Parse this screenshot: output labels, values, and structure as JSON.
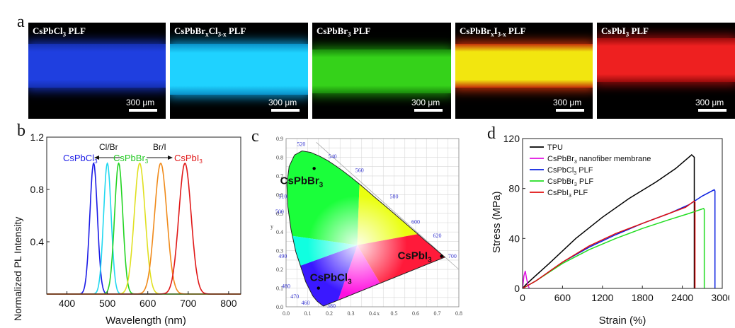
{
  "panel_a": {
    "letter": "a",
    "photos": [
      {
        "caption_parts": [
          "CsPbCl",
          "3",
          " PLF"
        ],
        "subs": [
          1
        ],
        "band_color": "#1f3fe0",
        "glow": "#1530b0",
        "scale_bar": "300 μm"
      },
      {
        "caption_parts": [
          "CsPbBr",
          "x",
          "Cl",
          "3-x",
          " PLF"
        ],
        "subs": [
          1,
          3
        ],
        "band_color": "#1fd2ff",
        "glow": "#0a90c8",
        "scale_bar": "300 μm"
      },
      {
        "caption_parts": [
          "CsPbBr",
          "3",
          " PLF"
        ],
        "subs": [
          1
        ],
        "band_color": "#35d21a",
        "glow": "#1a8a0c",
        "scale_bar": "300 μm"
      },
      {
        "caption_parts": [
          "CsPbBr",
          "x",
          "I",
          "3-x",
          " PLF"
        ],
        "subs": [
          1,
          3
        ],
        "band_color": "#f2e60f",
        "glow": "#c4300a",
        "scale_bar": "300 μm"
      },
      {
        "caption_parts": [
          "CsPbI",
          "3",
          " PLF"
        ],
        "subs": [
          1
        ],
        "band_color": "#ee2020",
        "glow": "#9a0c0c",
        "scale_bar": "300 μm"
      }
    ]
  },
  "panel_b": {
    "letter": "b",
    "ylabel": "Normalized PL Intensity",
    "xlabel": "Wavelength (nm)",
    "xticks": [
      "400",
      "500",
      "600",
      "700",
      "800"
    ],
    "yticks": [
      "0.4",
      "0.8",
      "1.2"
    ],
    "annot_clbr": "Cl/Br",
    "annot_bri": "Br/I",
    "label_cl": "CsPbCl",
    "label_br": "CsPbBr",
    "label_i": "CsPbI",
    "sub3": "3"
  },
  "panel_c": {
    "letter": "c",
    "yticks": [
      "0.0",
      "0.1",
      "0.2",
      "0.3",
      "0.4",
      "0.5",
      "0.6",
      "0.7",
      "0.8",
      "0.9"
    ],
    "xticks": [
      "0.0",
      "0.1",
      "0.2",
      "0.3",
      "0.4",
      "0.5",
      "0.6",
      "0.7",
      "0.8"
    ],
    "x_axis_letter": "x",
    "y_axis_letter": "y",
    "wavelength_marks": [
      "520",
      "540",
      "560",
      "580",
      "600",
      "620",
      "700",
      "510",
      "500",
      "490",
      "480",
      "470",
      "460",
      "380"
    ],
    "label_br": "CsPbBr",
    "label_i": "CsPbI",
    "label_cl": "CsPbCl",
    "sub3": "3"
  },
  "panel_d": {
    "letter": "d",
    "ylabel": "Stress (MPa)",
    "xlabel": "Strain (%)",
    "xticks": [
      "0",
      "600",
      "1200",
      "1800",
      "2400",
      "3000"
    ],
    "yticks": [
      "0",
      "40",
      "80",
      "120"
    ],
    "legend": [
      {
        "label": "TPU",
        "color": "#000000"
      },
      {
        "label_parts": [
          "CsPbBr",
          "3",
          " nanofiber membrane"
        ],
        "color": "#e010e0"
      },
      {
        "label_parts": [
          "CsPbCl",
          "3",
          " PLF"
        ],
        "color": "#0a1fe0"
      },
      {
        "label_parts": [
          "CsPbBr",
          "3",
          " PLF"
        ],
        "color": "#22dd22"
      },
      {
        "label_parts": [
          "CsPbI",
          "3",
          " PLF"
        ],
        "color": "#e01010"
      }
    ]
  },
  "chart_data": [
    {
      "type": "line",
      "panel": "b",
      "xlabel": "Wavelength (nm)",
      "ylabel": "Normalized PL Intensity",
      "xlim": [
        350,
        830
      ],
      "ylim": [
        0,
        1.2
      ],
      "series": [
        {
          "peak_nm": 466,
          "fwhm_nm": 22,
          "color": "#1a1ae6"
        },
        {
          "peak_nm": 500,
          "fwhm_nm": 22,
          "color": "#20d8f0"
        },
        {
          "peak_nm": 528,
          "fwhm_nm": 24,
          "color": "#22d422"
        },
        {
          "peak_nm": 580,
          "fwhm_nm": 32,
          "color": "#e0e020"
        },
        {
          "peak_nm": 632,
          "fwhm_nm": 36,
          "color": "#f08a1a"
        },
        {
          "peak_nm": 692,
          "fwhm_nm": 36,
          "color": "#e01818"
        }
      ]
    },
    {
      "type": "scatter",
      "panel": "c",
      "xlim": [
        0,
        0.8
      ],
      "ylim": [
        0,
        0.9
      ],
      "points": [
        {
          "name": "CsPbBr3",
          "x": 0.13,
          "y": 0.74
        },
        {
          "name": "CsPbI3",
          "x": 0.72,
          "y": 0.27
        },
        {
          "name": "CsPbCl3",
          "x": 0.15,
          "y": 0.1
        }
      ]
    },
    {
      "type": "line",
      "panel": "d",
      "xlabel": "Strain (%)",
      "ylabel": "Stress (MPa)",
      "xlim": [
        0,
        3000
      ],
      "ylim": [
        0,
        120
      ],
      "series": [
        {
          "name": "TPU",
          "color": "#000000",
          "points": [
            [
              0,
              0
            ],
            [
              50,
              3
            ],
            [
              150,
              8
            ],
            [
              400,
              20
            ],
            [
              800,
              40
            ],
            [
              1200,
              57
            ],
            [
              1600,
              72
            ],
            [
              2000,
              85
            ],
            [
              2300,
              96
            ],
            [
              2540,
              107
            ],
            [
              2580,
              105
            ],
            [
              2580,
              0
            ]
          ]
        },
        {
          "name": "CsPbBr3 nanofiber membrane",
          "color": "#e010e0",
          "points": [
            [
              0,
              0
            ],
            [
              20,
              10
            ],
            [
              40,
              14
            ],
            [
              60,
              8
            ],
            [
              80,
              3
            ],
            [
              100,
              0
            ]
          ]
        },
        {
          "name": "CsPbCl3 PLF",
          "color": "#0a1fe0",
          "points": [
            [
              0,
              0
            ],
            [
              200,
              6
            ],
            [
              600,
              21
            ],
            [
              1000,
              33
            ],
            [
              1400,
              43
            ],
            [
              1800,
              52
            ],
            [
              2200,
              60
            ],
            [
              2500,
              67
            ],
            [
              2700,
              74
            ],
            [
              2880,
              79
            ],
            [
              2890,
              78
            ],
            [
              2890,
              0
            ]
          ]
        },
        {
          "name": "CsPbBr3 PLF",
          "color": "#22dd22",
          "points": [
            [
              0,
              0
            ],
            [
              200,
              6
            ],
            [
              600,
              20
            ],
            [
              1000,
              31
            ],
            [
              1400,
              40
            ],
            [
              1800,
              48
            ],
            [
              2200,
              55
            ],
            [
              2500,
              60
            ],
            [
              2720,
              64
            ],
            [
              2730,
              63
            ],
            [
              2730,
              0
            ]
          ]
        },
        {
          "name": "CsPbI3 PLF",
          "color": "#e01010",
          "points": [
            [
              0,
              0
            ],
            [
              200,
              6
            ],
            [
              600,
              21
            ],
            [
              1000,
              34
            ],
            [
              1400,
              44
            ],
            [
              1800,
              52
            ],
            [
              2200,
              60
            ],
            [
              2450,
              65
            ],
            [
              2580,
              70
            ],
            [
              2590,
              69
            ],
            [
              2590,
              0
            ]
          ]
        }
      ]
    }
  ]
}
